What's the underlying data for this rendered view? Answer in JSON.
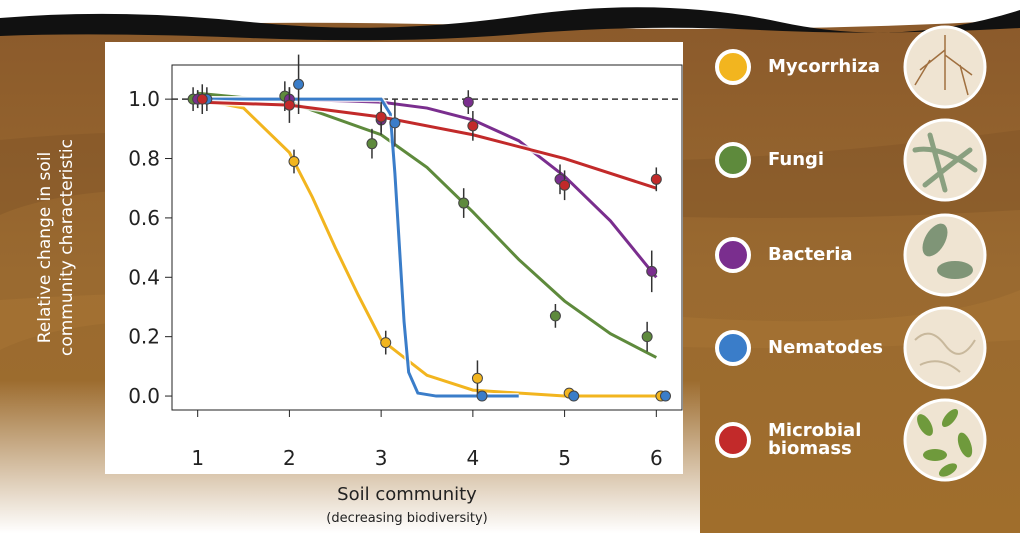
{
  "chart_data": {
    "type": "scatter",
    "y_label_lines": [
      "Relative change in soil",
      "community characteristic"
    ],
    "x_label": "Soil community",
    "x_sublabel": "(decreasing biodiversity)",
    "xlim": [
      0.72,
      6.28
    ],
    "ylim": [
      -0.047,
      1.115
    ],
    "xticks": [
      1,
      2,
      3,
      4,
      5,
      6
    ],
    "yticks": [
      {
        "value": 0,
        "label": "0.0"
      },
      0.2,
      0.4,
      0.6,
      0.8,
      {
        "value": 1,
        "label": "1.0"
      }
    ],
    "reference_line": 1,
    "series": [
      {
        "name": "Mycorrhiza",
        "color": "#f2b51f",
        "x": [
          1.0,
          2.05,
          3.05,
          4.05,
          5.05,
          6.05
        ],
        "values": [
          1.0,
          0.79,
          0.18,
          0.06,
          0.01,
          0.0
        ],
        "errors": [
          0.03,
          0.04,
          0.04,
          0.06,
          0.01,
          0.01
        ],
        "fit_x": [
          1,
          1.5,
          2,
          2.25,
          2.5,
          2.75,
          3,
          3.5,
          4,
          5,
          6
        ],
        "fit_values": [
          1.0,
          0.97,
          0.82,
          0.67,
          0.5,
          0.34,
          0.19,
          0.07,
          0.02,
          0.0,
          0.0
        ]
      },
      {
        "name": "Fungi",
        "color": "#5e8a3c",
        "x": [
          0.95,
          1.95,
          2.9,
          3.9,
          4.9,
          5.9
        ],
        "values": [
          1.0,
          1.01,
          0.85,
          0.65,
          0.27,
          0.2
        ],
        "errors": [
          0.04,
          0.05,
          0.05,
          0.05,
          0.04,
          0.05
        ],
        "fit_x": [
          1,
          2,
          3,
          3.5,
          4,
          4.5,
          5,
          5.5,
          6
        ],
        "fit_values": [
          1.02,
          0.99,
          0.88,
          0.77,
          0.62,
          0.46,
          0.32,
          0.21,
          0.13
        ]
      },
      {
        "name": "Bacteria",
        "color": "#7a2e8e",
        "x": [
          1.0,
          2.0,
          3.0,
          3.95,
          4.95,
          5.95
        ],
        "values": [
          1.0,
          1.0,
          0.93,
          0.99,
          0.73,
          0.42
        ],
        "errors": [
          0.03,
          0.04,
          0.05,
          0.04,
          0.05,
          0.07
        ],
        "fit_x": [
          1,
          2,
          3,
          3.5,
          4,
          4.5,
          5,
          5.5,
          6
        ],
        "fit_values": [
          1.0,
          1.0,
          0.99,
          0.97,
          0.93,
          0.86,
          0.74,
          0.59,
          0.4
        ]
      },
      {
        "name": "Nematodes",
        "color": "#3a7dc9",
        "x": [
          1.1,
          2.1,
          3.15,
          4.1,
          5.1,
          6.1
        ],
        "values": [
          1.0,
          1.05,
          0.92,
          0.0,
          0.0,
          0.0
        ],
        "errors": [
          0.04,
          0.1,
          0.08,
          0.01,
          0.01,
          0.01
        ],
        "fit_x": [
          1,
          2,
          3,
          3.1,
          3.15,
          3.2,
          3.25,
          3.3,
          3.4,
          3.6,
          4.5
        ],
        "fit_values": [
          1.0,
          1.0,
          1.0,
          0.95,
          0.75,
          0.5,
          0.25,
          0.08,
          0.01,
          0.0,
          0.0
        ]
      },
      {
        "name": "Microbial biomass",
        "color": "#c22a2a",
        "x": [
          1.05,
          2.0,
          3.0,
          4.0,
          5.0,
          6.0
        ],
        "values": [
          1.0,
          0.98,
          0.94,
          0.91,
          0.71,
          0.73
        ],
        "errors": [
          0.05,
          0.06,
          0.05,
          0.05,
          0.05,
          0.04
        ],
        "fit_x": [
          1,
          2,
          3,
          4,
          5,
          6
        ],
        "fit_values": [
          0.99,
          0.98,
          0.94,
          0.88,
          0.8,
          0.7
        ]
      }
    ]
  }
}
